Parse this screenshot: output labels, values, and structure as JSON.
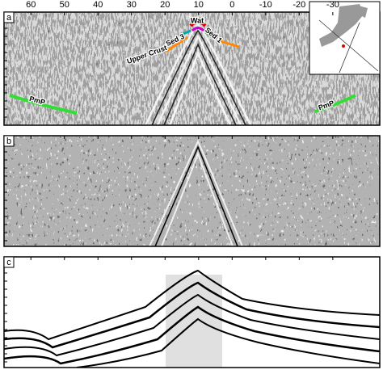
{
  "figure": {
    "xaxis": {
      "xlim": [
        68,
        -44
      ],
      "xticks": [
        60,
        50,
        40,
        30,
        20,
        10,
        0,
        -10,
        -20,
        -30
      ]
    },
    "panels": [
      {
        "label": "a",
        "annotations": [
          "Wat",
          "Sed 3",
          "Sed 1",
          "Upper Crust",
          "PmP",
          "PmP"
        ]
      },
      {
        "label": "b"
      },
      {
        "label": "c"
      }
    ]
  }
}
